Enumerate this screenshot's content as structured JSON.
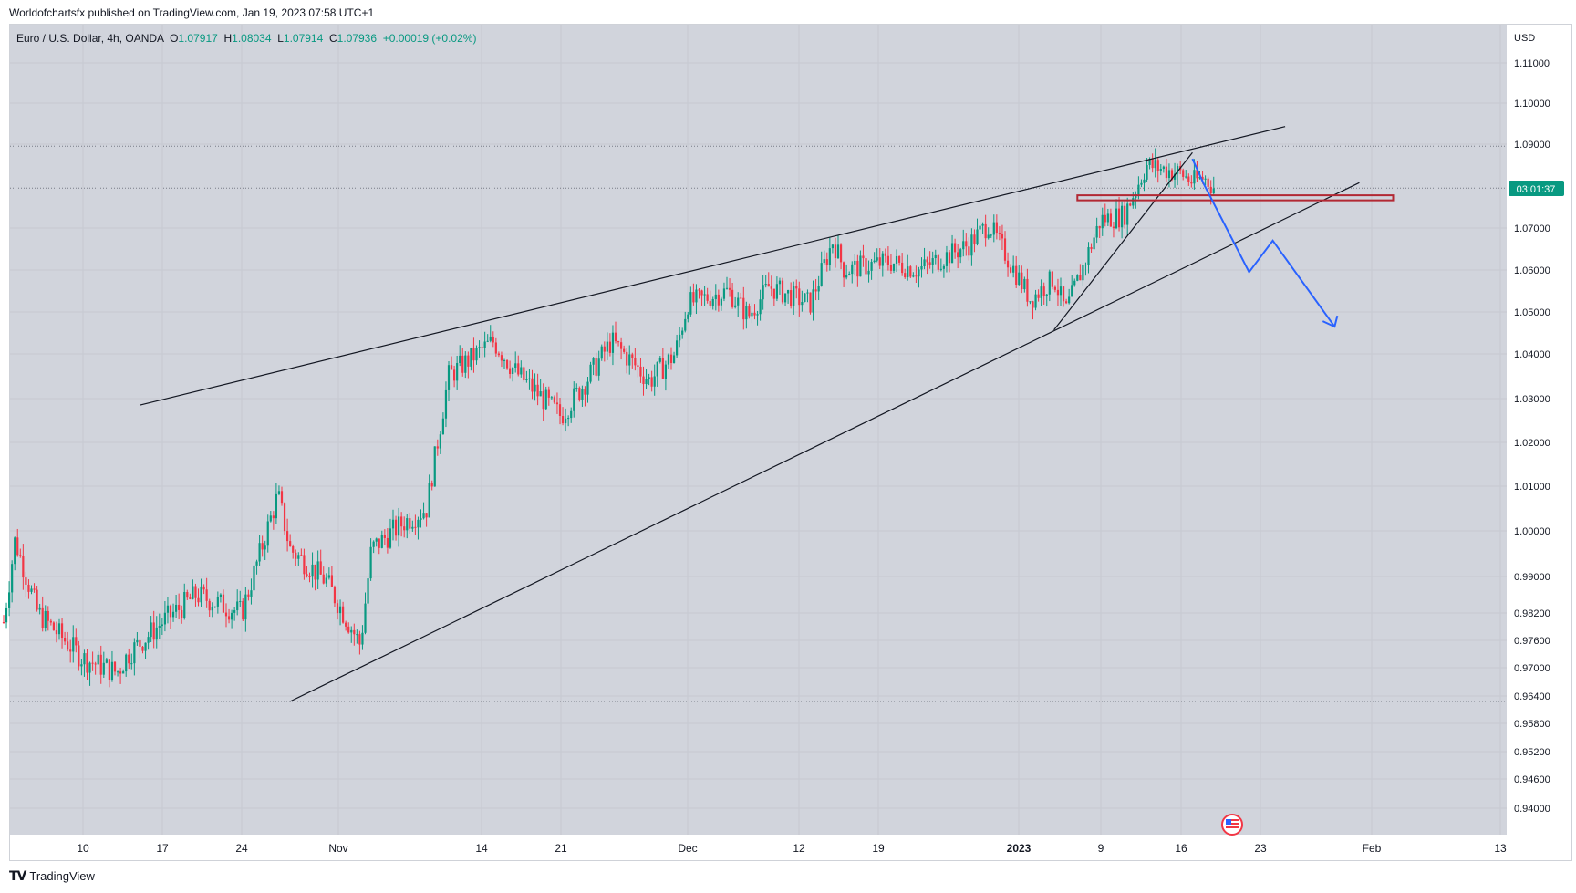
{
  "header": {
    "published_by": "Worldofchartsfx published on TradingView.com, Jan 19, 2023 07:58 UTC+1"
  },
  "legend": {
    "symbol": "Euro / U.S. Dollar, 4h, OANDA",
    "open_label": "O",
    "open": "1.07917",
    "high_label": "H",
    "high": "1.08034",
    "low_label": "L",
    "low": "1.07914",
    "close_label": "C",
    "close": "1.07936",
    "change": "+0.00019 (+0.02%)"
  },
  "footer": {
    "brand": "TradingView"
  },
  "colors": {
    "up": "#089981",
    "down": "#f23645",
    "background": "#d1d4dc",
    "grid": "#c3c6ce",
    "projection": "#2962ff",
    "zone": "#b22833"
  },
  "icons": {
    "logo": "tradingview-logo-icon",
    "event": "us-flag-event-icon"
  },
  "chart_data": {
    "type": "candlestick",
    "instrument": "Euro / U.S. Dollar",
    "timeframe": "4h",
    "currency": "USD",
    "countdown": "03:01:37",
    "last_price": 1.07936,
    "y_ticks": [
      "1.11000",
      "1.10000",
      "1.09000",
      "1.07000",
      "1.06000",
      "1.05000",
      "1.04000",
      "1.03000",
      "1.02000",
      "1.01000",
      "1.00000",
      "0.99000",
      "0.98200",
      "0.97600",
      "0.97000",
      "0.96400",
      "0.95800",
      "0.95200",
      "0.94600",
      "0.94000"
    ],
    "x_ticks": [
      "10",
      "17",
      "24",
      "Nov",
      "14",
      "21",
      "Dec",
      "12",
      "19",
      "2023",
      "9",
      "16",
      "23",
      "Feb",
      "13"
    ],
    "ylim": [
      0.9385,
      1.1165
    ],
    "grid": true,
    "horizontal_levels": [
      1.0895,
      1.0795,
      0.9628
    ],
    "price_path": [
      {
        "date": "2022-10-03",
        "price": 0.98
      },
      {
        "date": "2022-10-04",
        "price": 0.998
      },
      {
        "date": "2022-10-06",
        "price": 0.982
      },
      {
        "date": "2022-10-10",
        "price": 0.972
      },
      {
        "date": "2022-10-13",
        "price": 0.969
      },
      {
        "date": "2022-10-14",
        "price": 0.973
      },
      {
        "date": "2022-10-17",
        "price": 0.98
      },
      {
        "date": "2022-10-20",
        "price": 0.986
      },
      {
        "date": "2022-10-24",
        "price": 0.982
      },
      {
        "date": "2022-10-27",
        "price": 1.008
      },
      {
        "date": "2022-10-28",
        "price": 0.996
      },
      {
        "date": "2022-10-31",
        "price": 0.989
      },
      {
        "date": "2022-11-03",
        "price": 0.975
      },
      {
        "date": "2022-11-04",
        "price": 0.996
      },
      {
        "date": "2022-11-07",
        "price": 1.002
      },
      {
        "date": "2022-11-09",
        "price": 1.005
      },
      {
        "date": "2022-11-10",
        "price": 1.02
      },
      {
        "date": "2022-11-11",
        "price": 1.035
      },
      {
        "date": "2022-11-15",
        "price": 1.043
      },
      {
        "date": "2022-11-17",
        "price": 1.036
      },
      {
        "date": "2022-11-21",
        "price": 1.026
      },
      {
        "date": "2022-11-23",
        "price": 1.034
      },
      {
        "date": "2022-11-25",
        "price": 1.043
      },
      {
        "date": "2022-11-28",
        "price": 1.034
      },
      {
        "date": "2022-11-30",
        "price": 1.04
      },
      {
        "date": "2022-12-01",
        "price": 1.052
      },
      {
        "date": "2022-12-05",
        "price": 1.055
      },
      {
        "date": "2022-12-07",
        "price": 1.049
      },
      {
        "date": "2022-12-09",
        "price": 1.056
      },
      {
        "date": "2022-12-13",
        "price": 1.052
      },
      {
        "date": "2022-12-15",
        "price": 1.067
      },
      {
        "date": "2022-12-16",
        "price": 1.06
      },
      {
        "date": "2022-12-20",
        "price": 1.062
      },
      {
        "date": "2022-12-23",
        "price": 1.06
      },
      {
        "date": "2022-12-28",
        "price": 1.066
      },
      {
        "date": "2022-12-30",
        "price": 1.071
      },
      {
        "date": "2023-01-03",
        "price": 1.053
      },
      {
        "date": "2023-01-05",
        "price": 1.058
      },
      {
        "date": "2023-01-06",
        "price": 1.05
      },
      {
        "date": "2023-01-09",
        "price": 1.072
      },
      {
        "date": "2023-01-11",
        "price": 1.073
      },
      {
        "date": "2023-01-13",
        "price": 1.085
      },
      {
        "date": "2023-01-16",
        "price": 1.083
      },
      {
        "date": "2023-01-17",
        "price": 1.081
      },
      {
        "date": "2023-01-18",
        "price": 1.082
      },
      {
        "date": "2023-01-19",
        "price": 1.0794
      }
    ],
    "trendlines": [
      {
        "role": "upper-channel",
        "from": {
          "date": "2022-10-15",
          "price": 1.0285
        },
        "to": {
          "date": "2023-01-25",
          "price": 1.0943
        }
      },
      {
        "role": "lower-channel",
        "from": {
          "date": "2022-10-28",
          "price": 0.9628
        },
        "to": {
          "date": "2023-01-31",
          "price": 1.0808
        }
      },
      {
        "role": "steep-support",
        "from": {
          "date": "2023-01-05",
          "price": 1.0457
        },
        "to": {
          "date": "2023-01-17",
          "price": 1.088
        }
      }
    ],
    "resistance_zone": {
      "from_date": "2023-01-07",
      "to_date": "2023-02-03",
      "low": 1.0766,
      "high": 1.0778
    },
    "projection_path": [
      {
        "date": "2023-01-17",
        "price": 1.0865
      },
      {
        "date": "2023-01-18",
        "price": 1.0805
      },
      {
        "date": "2023-01-22",
        "price": 1.0595
      },
      {
        "date": "2023-01-24",
        "price": 1.067
      },
      {
        "date": "2023-01-29",
        "price": 1.0465
      }
    ]
  }
}
